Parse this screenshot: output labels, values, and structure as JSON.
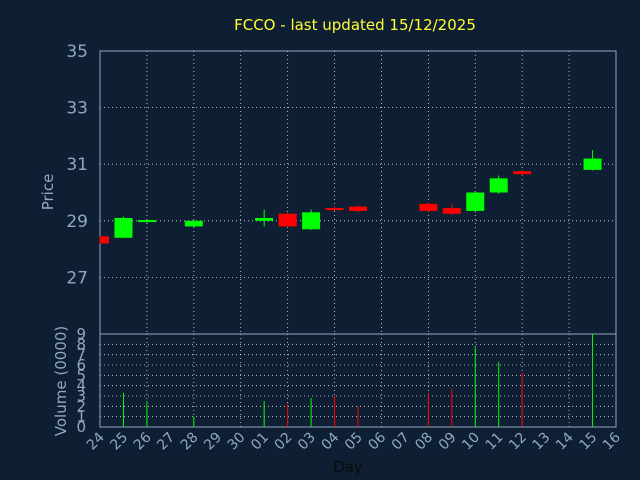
{
  "chart_data": [
    {
      "type": "candlestick",
      "title": "FCCO - last updated 15/12/2025",
      "ylabel": "Price",
      "ylim": [
        25,
        35
      ],
      "yticks": [
        27,
        29,
        31,
        33,
        35
      ],
      "grid": true,
      "up_color": "#00ff00",
      "down_color": "#ff0000",
      "candles": [
        {
          "x": "24",
          "open": 28.45,
          "high": 28.45,
          "low": 28.2,
          "close": 28.2,
          "dir": "down"
        },
        {
          "x": "25",
          "open": 28.4,
          "high": 29.15,
          "low": 28.4,
          "close": 29.1,
          "dir": "up"
        },
        {
          "x": "26",
          "open": 28.98,
          "high": 29.03,
          "low": 28.93,
          "close": 29.0,
          "dir": "up"
        },
        {
          "x": "28",
          "open": 28.8,
          "high": 29.02,
          "low": 28.78,
          "close": 29.0,
          "dir": "up"
        },
        {
          "x": "01",
          "open": 29.0,
          "high": 29.4,
          "low": 28.8,
          "close": 29.1,
          "dir": "up"
        },
        {
          "x": "02",
          "open": 29.25,
          "high": 29.28,
          "low": 28.8,
          "close": 28.8,
          "dir": "down"
        },
        {
          "x": "03",
          "open": 28.7,
          "high": 29.4,
          "low": 28.68,
          "close": 29.3,
          "dir": "up"
        },
        {
          "x": "04",
          "open": 29.45,
          "high": 29.5,
          "low": 29.35,
          "close": 29.38,
          "dir": "down"
        },
        {
          "x": "05",
          "open": 29.5,
          "high": 29.55,
          "low": 29.3,
          "close": 29.35,
          "dir": "down"
        },
        {
          "x": "08",
          "open": 29.6,
          "high": 29.65,
          "low": 29.3,
          "close": 29.35,
          "dir": "down"
        },
        {
          "x": "09",
          "open": 29.45,
          "high": 29.62,
          "low": 29.2,
          "close": 29.25,
          "dir": "down"
        },
        {
          "x": "10",
          "open": 29.35,
          "high": 30.05,
          "low": 29.3,
          "close": 30.0,
          "dir": "up"
        },
        {
          "x": "11",
          "open": 30.0,
          "high": 30.6,
          "low": 29.95,
          "close": 30.5,
          "dir": "up"
        },
        {
          "x": "12",
          "open": 30.75,
          "high": 30.8,
          "low": 30.6,
          "close": 30.65,
          "dir": "down"
        },
        {
          "x": "15",
          "open": 30.8,
          "high": 31.5,
          "low": 30.78,
          "close": 31.2,
          "dir": "up"
        }
      ]
    },
    {
      "type": "bar",
      "ylabel": "Volume (0000)",
      "ylim": [
        0,
        9
      ],
      "yticks": [
        0,
        1,
        2,
        3,
        4,
        5,
        6,
        7,
        8,
        9
      ],
      "xlabel": "Day",
      "categories": [
        "24",
        "25",
        "26",
        "27",
        "28",
        "29",
        "30",
        "01",
        "02",
        "03",
        "04",
        "05",
        "06",
        "07",
        "08",
        "09",
        "10",
        "11",
        "12",
        "13",
        "14",
        "15",
        "16"
      ],
      "volumes": [
        {
          "x": "25",
          "value": 3.3,
          "dir": "up"
        },
        {
          "x": "26",
          "value": 2.5,
          "dir": "up"
        },
        {
          "x": "28",
          "value": 1.0,
          "dir": "up"
        },
        {
          "x": "01",
          "value": 2.5,
          "dir": "up"
        },
        {
          "x": "02",
          "value": 2.3,
          "dir": "down"
        },
        {
          "x": "03",
          "value": 2.8,
          "dir": "up"
        },
        {
          "x": "04",
          "value": 3.0,
          "dir": "down"
        },
        {
          "x": "05",
          "value": 2.0,
          "dir": "down"
        },
        {
          "x": "08",
          "value": 3.3,
          "dir": "down"
        },
        {
          "x": "09",
          "value": 3.7,
          "dir": "down"
        },
        {
          "x": "10",
          "value": 7.7,
          "dir": "up"
        },
        {
          "x": "11",
          "value": 6.3,
          "dir": "up"
        },
        {
          "x": "12",
          "value": 5.3,
          "dir": "down"
        },
        {
          "x": "15",
          "value": 9.0,
          "dir": "up"
        }
      ]
    }
  ]
}
